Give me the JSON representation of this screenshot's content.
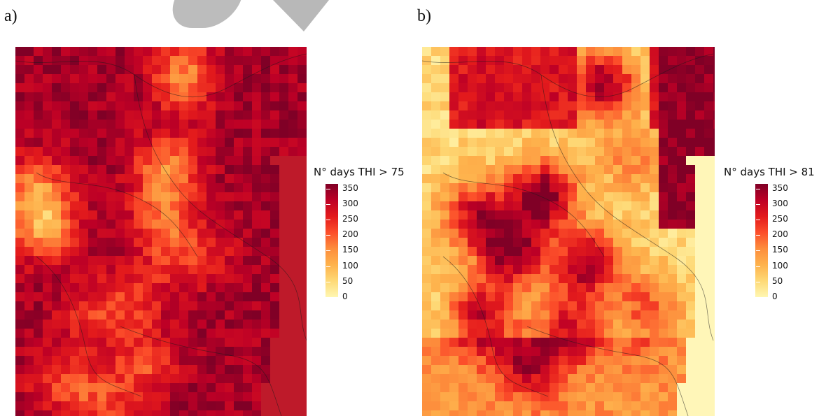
{
  "panels": [
    {
      "letter": "a)",
      "legend_title": "N° days THI > 75",
      "base_color": "#8e0f16",
      "sea_color": "#be1a2a",
      "hotspots": [
        [
          0.58,
          0.08,
          0.55
        ],
        [
          0.52,
          0.33,
          0.55
        ],
        [
          0.1,
          0.48,
          0.6
        ],
        [
          0.07,
          0.38,
          0.5
        ],
        [
          0.5,
          0.45,
          0.3
        ],
        [
          0.55,
          0.55,
          0.3
        ],
        [
          0.4,
          0.68,
          0.3
        ],
        [
          0.25,
          0.72,
          0.25
        ],
        [
          0.45,
          0.85,
          0.35
        ],
        [
          0.15,
          0.9,
          0.3
        ],
        [
          0.3,
          0.95,
          0.35
        ],
        [
          0.68,
          0.56,
          0.15
        ]
      ]
    },
    {
      "letter": "b)",
      "legend_title": "N° days THI > 81",
      "base_color": "#fff5b0",
      "sea_color": "#fff6b8",
      "hotspots": [
        [
          0.4,
          0.4,
          0.95
        ],
        [
          0.3,
          0.55,
          0.85
        ],
        [
          0.55,
          0.58,
          0.8
        ],
        [
          0.18,
          0.45,
          0.7
        ],
        [
          0.6,
          0.1,
          0.85
        ],
        [
          0.2,
          0.72,
          0.7
        ],
        [
          0.5,
          0.75,
          0.6
        ],
        [
          0.7,
          0.3,
          0.3
        ],
        [
          0.35,
          0.85,
          0.5
        ],
        [
          0.75,
          0.7,
          0.45
        ]
      ]
    }
  ],
  "legend": {
    "ticks": [
      "350",
      "300",
      "250",
      "200",
      "150",
      "100",
      "50",
      "0"
    ],
    "range": [
      0,
      365
    ],
    "colors": [
      "#fff7b2",
      "#fed976",
      "#feb24c",
      "#fd8d3c",
      "#fc4e2a",
      "#e31a1c",
      "#bd0026",
      "#800026"
    ]
  }
}
